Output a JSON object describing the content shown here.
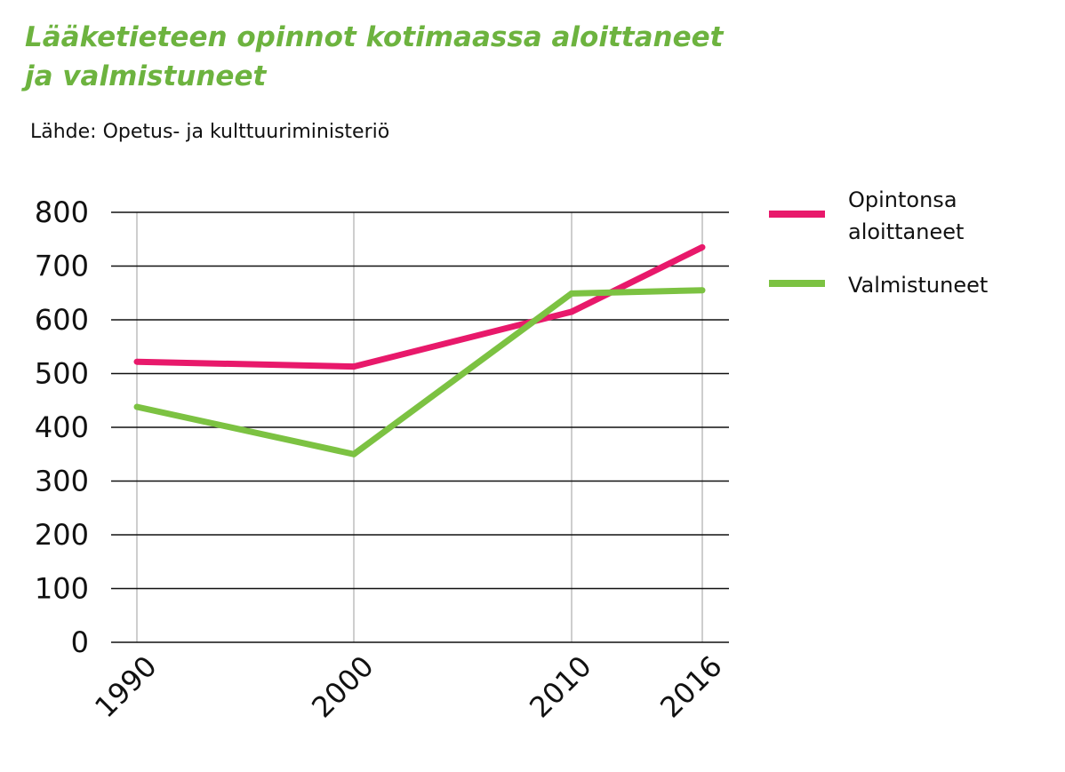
{
  "chart_data": {
    "type": "line",
    "title_line1": "Lääketieteen opinnot kotimaassa aloittaneet",
    "title_line2": "ja valmistuneet",
    "source": "Lähde: Opetus- ja kulttuuriministeriö",
    "x": [
      1990,
      2000,
      2010,
      2016
    ],
    "x_labels": [
      "1990",
      "2000",
      "2010",
      "2016"
    ],
    "ylim": [
      0,
      800
    ],
    "y_ticks": [
      0,
      100,
      200,
      300,
      400,
      500,
      600,
      700,
      800
    ],
    "y_tick_labels": [
      "0",
      "100",
      "200",
      "300",
      "400",
      "500",
      "600",
      "700",
      "800"
    ],
    "grid": true,
    "legend_position": "right",
    "series": [
      {
        "name": "Opintonsa aloittaneet",
        "name_lines": [
          "Opintonsa",
          "aloittaneet"
        ],
        "color": "#e8196b",
        "values": [
          522,
          513,
          615,
          735
        ]
      },
      {
        "name": "Valmistuneet",
        "name_lines": [
          "Valmistuneet"
        ],
        "color": "#7cc242",
        "values": [
          438,
          350,
          649,
          655
        ]
      }
    ]
  }
}
